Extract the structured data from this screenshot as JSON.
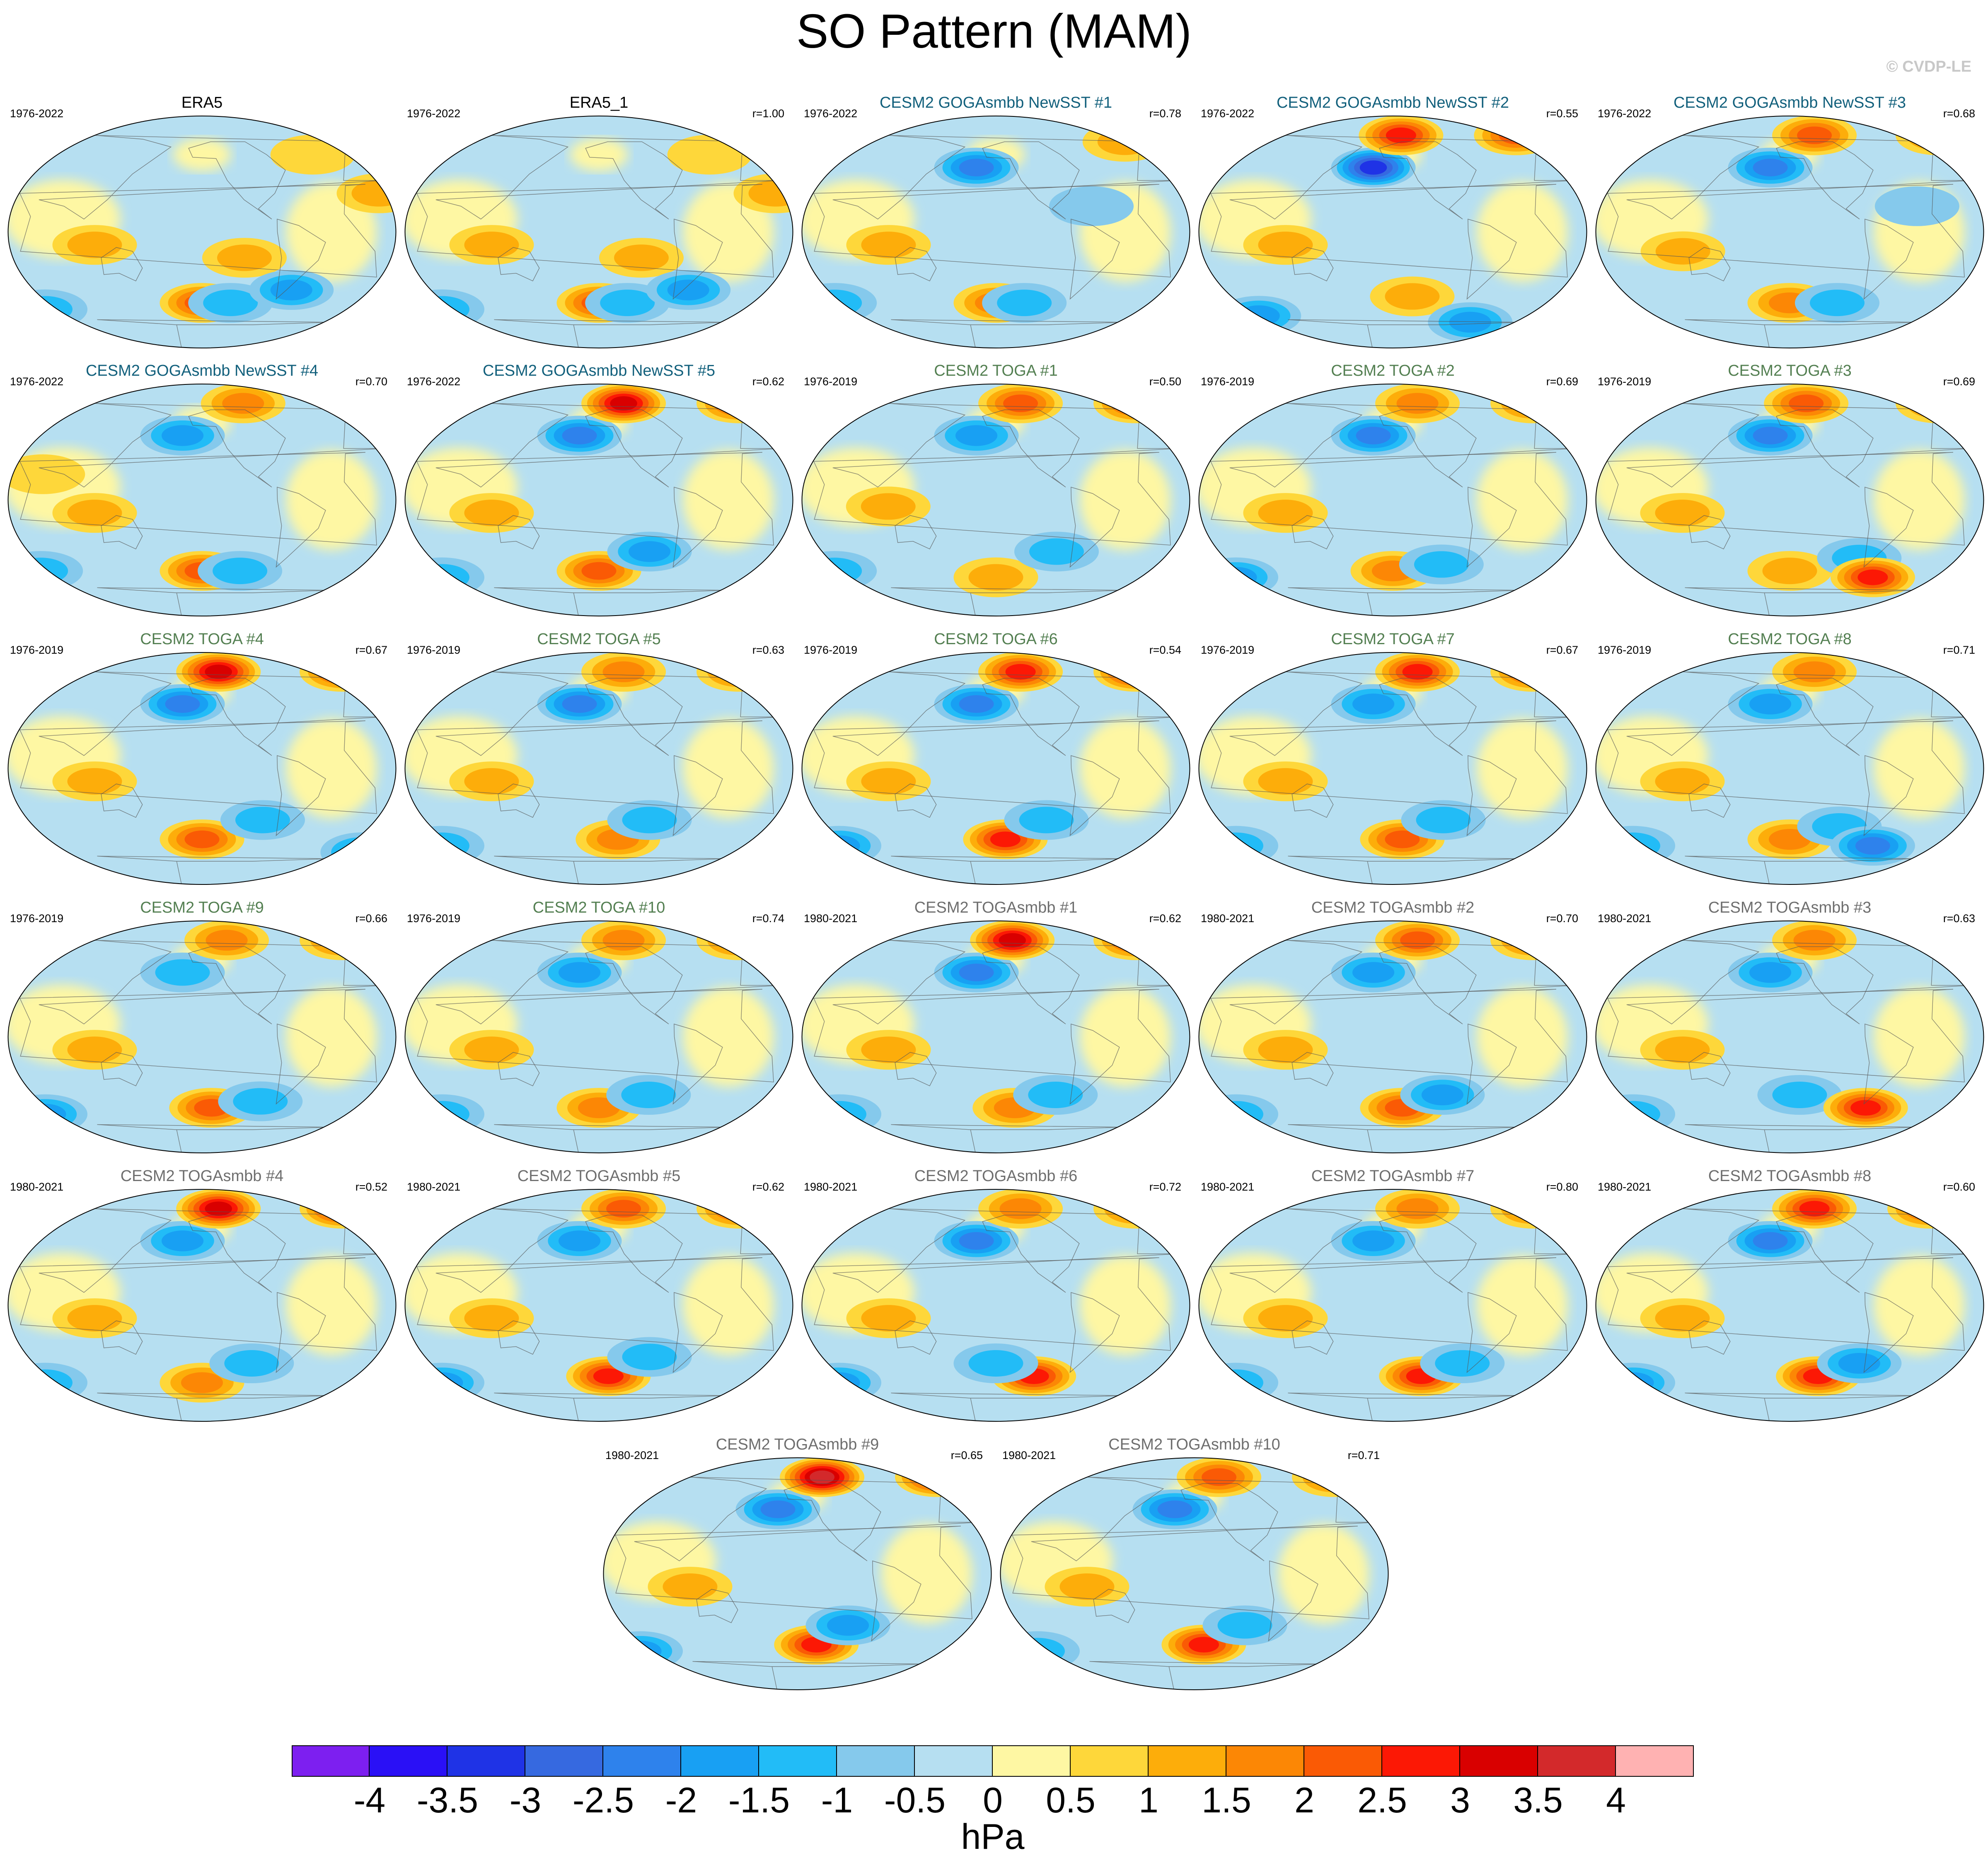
{
  "title": "SO Pattern (MAM)",
  "copyright": "© CVDP-LE",
  "colors": {
    "obs_title": "#000000",
    "goga_title": "#12607c",
    "toga_title": "#537f51",
    "togasmbb_title": "#6e6e6e",
    "ocean_neutral_neg": "#b6dff1",
    "ocean_neutral_pos": "#fef7a3"
  },
  "panels": [
    {
      "title": "ERA5",
      "years": "1976-2022",
      "r": "",
      "group": "obs",
      "anomalies": [
        [
          -110,
          -20,
          1.0
        ],
        [
          -150,
          -55,
          2.3
        ],
        [
          -120,
          -55,
          -1.2
        ],
        [
          -60,
          -45,
          -1.8
        ],
        [
          40,
          -60,
          -1.2
        ],
        [
          110,
          -10,
          1.2
        ],
        [
          20,
          30,
          1.0
        ],
        [
          -30,
          60,
          0.6
        ]
      ]
    },
    {
      "title": "ERA5_1",
      "years": "1976-2022",
      "r": "r=1.00",
      "group": "obs",
      "anomalies": [
        [
          -110,
          -20,
          1.0
        ],
        [
          -150,
          -55,
          2.3
        ],
        [
          -120,
          -55,
          -1.2
        ],
        [
          -60,
          -45,
          -1.8
        ],
        [
          40,
          -60,
          -1.2
        ],
        [
          110,
          -10,
          1.2
        ],
        [
          20,
          30,
          1.0
        ],
        [
          -30,
          60,
          0.6
        ]
      ]
    },
    {
      "title": "CESM2 GOGAsmbb NewSST #1",
      "years": "1976-2022",
      "r": "r=0.78",
      "group": "goga",
      "anomalies": [
        [
          -170,
          50,
          -2.2
        ],
        [
          -150,
          -55,
          1.8
        ],
        [
          -120,
          -55,
          -1.3
        ],
        [
          110,
          -10,
          1.2
        ],
        [
          0,
          70,
          1.2
        ],
        [
          -60,
          20,
          -0.8
        ],
        [
          40,
          -55,
          -1.0
        ]
      ]
    },
    {
      "title": "CESM2 GOGAsmbb NewSST #2",
      "years": "1976-2022",
      "r": "r=0.55",
      "group": "goga",
      "anomalies": [
        [
          -170,
          50,
          -3.0
        ],
        [
          -140,
          75,
          2.8
        ],
        [
          0,
          75,
          2.0
        ],
        [
          -130,
          -50,
          1.3
        ],
        [
          -60,
          -70,
          -1.8
        ],
        [
          60,
          -65,
          -1.5
        ],
        [
          110,
          -10,
          1.0
        ]
      ]
    },
    {
      "title": "CESM2 GOGAsmbb NewSST #3",
      "years": "1976-2022",
      "r": "r=0.68",
      "group": "goga",
      "anomalies": [
        [
          -170,
          50,
          -2.0
        ],
        [
          -120,
          75,
          2.3
        ],
        [
          30,
          75,
          1.5
        ],
        [
          -150,
          -55,
          1.5
        ],
        [
          -100,
          -55,
          -1.2
        ],
        [
          110,
          -15,
          1.2
        ],
        [
          -30,
          20,
          -0.8
        ]
      ]
    },
    {
      "title": "CESM2 GOGAsmbb NewSST #4",
      "years": "1976-2022",
      "r": "r=0.70",
      "group": "goga",
      "anomalies": [
        [
          -170,
          50,
          -1.5
        ],
        [
          -100,
          75,
          1.5
        ],
        [
          -150,
          -55,
          2.0
        ],
        [
          -110,
          -55,
          -1.0
        ],
        [
          110,
          -10,
          1.0
        ],
        [
          40,
          -55,
          -1.0
        ],
        [
          60,
          20,
          0.8
        ]
      ]
    },
    {
      "title": "CESM2 GOGAsmbb NewSST #5",
      "years": "1976-2022",
      "r": "r=0.62",
      "group": "goga",
      "anomalies": [
        [
          -170,
          50,
          -2.2
        ],
        [
          -120,
          75,
          3.2
        ],
        [
          20,
          75,
          2.0
        ],
        [
          -150,
          -55,
          2.0
        ],
        [
          -100,
          -40,
          -1.5
        ],
        [
          110,
          -10,
          1.2
        ],
        [
          40,
          -60,
          -1.2
        ]
      ]
    },
    {
      "title": "CESM2 TOGA #1",
      "years": "1976-2019",
      "r": "r=0.50",
      "group": "toga",
      "anomalies": [
        [
          -170,
          50,
          -1.5
        ],
        [
          -120,
          75,
          2.3
        ],
        [
          20,
          75,
          2.0
        ],
        [
          -150,
          -60,
          1.3
        ],
        [
          -90,
          -40,
          -1.2
        ],
        [
          110,
          -5,
          1.0
        ],
        [
          40,
          -55,
          -1.0
        ]
      ]
    },
    {
      "title": "CESM2 TOGA #2",
      "years": "1976-2019",
      "r": "r=0.69",
      "group": "toga",
      "anomalies": [
        [
          -170,
          50,
          -2.0
        ],
        [
          -120,
          75,
          1.8
        ],
        [
          20,
          75,
          1.6
        ],
        [
          -150,
          -55,
          1.5
        ],
        [
          -100,
          -50,
          -1.3
        ],
        [
          110,
          -10,
          1.0
        ],
        [
          40,
          -60,
          -1.5
        ]
      ]
    },
    {
      "title": "CESM2 TOGA #3",
      "years": "1976-2019",
      "r": "r=0.69",
      "group": "toga",
      "anomalies": [
        [
          -170,
          50,
          -2.0
        ],
        [
          -130,
          75,
          2.3
        ],
        [
          30,
          75,
          1.6
        ],
        [
          -150,
          -55,
          1.0
        ],
        [
          -80,
          -45,
          -1.4
        ],
        [
          -60,
          -60,
          2.5
        ],
        [
          110,
          -10,
          1.0
        ]
      ]
    },
    {
      "title": "CESM2 TOGA #4",
      "years": "1976-2019",
      "r": "r=0.67",
      "group": "toga",
      "anomalies": [
        [
          -170,
          50,
          -2.0
        ],
        [
          -130,
          75,
          3.2
        ],
        [
          20,
          75,
          2.0
        ],
        [
          -150,
          -55,
          2.0
        ],
        [
          -90,
          -40,
          -1.2
        ],
        [
          110,
          -10,
          1.0
        ],
        [
          30,
          -65,
          -1.5
        ]
      ]
    },
    {
      "title": "CESM2 TOGA #5",
      "years": "1976-2019",
      "r": "r=0.63",
      "group": "toga",
      "anomalies": [
        [
          -170,
          50,
          -2.0
        ],
        [
          -120,
          75,
          1.8
        ],
        [
          20,
          75,
          1.6
        ],
        [
          -130,
          -55,
          1.8
        ],
        [
          -100,
          -40,
          -1.3
        ],
        [
          110,
          -10,
          1.0
        ],
        [
          40,
          -60,
          -1.2
        ]
      ]
    },
    {
      "title": "CESM2 TOGA #6",
      "years": "1976-2019",
      "r": "r=0.54",
      "group": "toga",
      "anomalies": [
        [
          -170,
          50,
          -2.2
        ],
        [
          -120,
          75,
          2.8
        ],
        [
          20,
          75,
          2.5
        ],
        [
          -140,
          -55,
          2.6
        ],
        [
          -100,
          -40,
          -1.3
        ],
        [
          110,
          -10,
          1.0
        ],
        [
          40,
          -60,
          -1.5
        ]
      ]
    },
    {
      "title": "CESM2 TOGA #7",
      "years": "1976-2019",
      "r": "r=0.67",
      "group": "toga",
      "anomalies": [
        [
          -170,
          50,
          -1.8
        ],
        [
          -120,
          75,
          2.6
        ],
        [
          20,
          75,
          2.0
        ],
        [
          -140,
          -55,
          2.0
        ],
        [
          -100,
          -40,
          -1.3
        ],
        [
          110,
          -10,
          1.2
        ],
        [
          40,
          -60,
          -1.2
        ]
      ]
    },
    {
      "title": "CESM2 TOGA #8",
      "years": "1976-2019",
      "r": "r=0.71",
      "group": "toga",
      "anomalies": [
        [
          -170,
          50,
          -1.5
        ],
        [
          -120,
          75,
          1.6
        ],
        [
          -150,
          -55,
          1.6
        ],
        [
          -100,
          -45,
          -1.3
        ],
        [
          -60,
          -60,
          -2.0
        ],
        [
          110,
          -10,
          1.0
        ],
        [
          40,
          -60,
          -1.0
        ]
      ]
    },
    {
      "title": "CESM2 TOGA #9",
      "years": "1976-2019",
      "r": "r=0.66",
      "group": "toga",
      "anomalies": [
        [
          -170,
          50,
          -1.4
        ],
        [
          -120,
          75,
          1.8
        ],
        [
          20,
          75,
          1.5
        ],
        [
          -140,
          -55,
          2.2
        ],
        [
          -90,
          -50,
          -1.3
        ],
        [
          110,
          -10,
          1.0
        ],
        [
          40,
          -60,
          -1.5
        ]
      ]
    },
    {
      "title": "CESM2 TOGA #10",
      "years": "1976-2019",
      "r": "r=0.74",
      "group": "toga",
      "anomalies": [
        [
          -170,
          50,
          -1.6
        ],
        [
          -120,
          75,
          1.8
        ],
        [
          20,
          75,
          1.5
        ],
        [
          -150,
          -55,
          1.5
        ],
        [
          -100,
          -45,
          -1.3
        ],
        [
          110,
          -10,
          1.0
        ],
        [
          40,
          -60,
          -1.2
        ]
      ]
    },
    {
      "title": "CESM2 TOGAsmbb #1",
      "years": "1980-2021",
      "r": "r=0.62",
      "group": "togasmbb",
      "anomalies": [
        [
          -170,
          50,
          -2.2
        ],
        [
          -130,
          75,
          3.0
        ],
        [
          20,
          75,
          2.0
        ],
        [
          -130,
          -55,
          1.8
        ],
        [
          -90,
          -45,
          -1.3
        ],
        [
          110,
          -10,
          1.0
        ],
        [
          40,
          -60,
          -1.2
        ]
      ]
    },
    {
      "title": "CESM2 TOGAsmbb #2",
      "years": "1980-2021",
      "r": "r=0.70",
      "group": "togasmbb",
      "anomalies": [
        [
          -170,
          50,
          -1.8
        ],
        [
          -120,
          75,
          2.0
        ],
        [
          20,
          75,
          1.6
        ],
        [
          -140,
          -55,
          2.0
        ],
        [
          -100,
          -45,
          -1.5
        ],
        [
          110,
          -10,
          1.0
        ],
        [
          40,
          -60,
          -1.2
        ]
      ]
    },
    {
      "title": "CESM2 TOGAsmbb #3",
      "years": "1980-2021",
      "r": "r=0.63",
      "group": "togasmbb",
      "anomalies": [
        [
          -170,
          50,
          -1.6
        ],
        [
          -120,
          75,
          1.5
        ],
        [
          -140,
          -45,
          -1.4
        ],
        [
          -70,
          -55,
          2.5
        ],
        [
          110,
          -10,
          1.0
        ],
        [
          40,
          -60,
          -1.2
        ]
      ]
    },
    {
      "title": "CESM2 TOGAsmbb #4",
      "years": "1980-2021",
      "r": "r=0.52",
      "group": "togasmbb",
      "anomalies": [
        [
          -170,
          50,
          -1.5
        ],
        [
          -130,
          75,
          3.3
        ],
        [
          20,
          75,
          2.5
        ],
        [
          -150,
          -60,
          1.5
        ],
        [
          -100,
          -45,
          -1.2
        ],
        [
          110,
          -10,
          1.0
        ],
        [
          40,
          -60,
          -1.0
        ]
      ]
    },
    {
      "title": "CESM2 TOGAsmbb #5",
      "years": "1980-2021",
      "r": "r=0.62",
      "group": "togasmbb",
      "anomalies": [
        [
          -170,
          50,
          -1.6
        ],
        [
          -120,
          75,
          2.3
        ],
        [
          20,
          75,
          2.0
        ],
        [
          -140,
          -55,
          2.6
        ],
        [
          -100,
          -40,
          -1.3
        ],
        [
          110,
          -10,
          1.0
        ],
        [
          40,
          -60,
          -1.5
        ]
      ]
    },
    {
      "title": "CESM2 TOGAsmbb #6",
      "years": "1980-2021",
      "r": "r=0.72",
      "group": "togasmbb",
      "anomalies": [
        [
          -170,
          50,
          -2.2
        ],
        [
          -120,
          75,
          1.8
        ],
        [
          20,
          75,
          1.6
        ],
        [
          -110,
          -55,
          2.5
        ],
        [
          -150,
          -45,
          -1.3
        ],
        [
          110,
          -10,
          1.0
        ],
        [
          40,
          -60,
          -1.5
        ]
      ]
    },
    {
      "title": "CESM2 TOGAsmbb #7",
      "years": "1980-2021",
      "r": "r=0.80",
      "group": "togasmbb",
      "anomalies": [
        [
          -170,
          50,
          -1.6
        ],
        [
          -120,
          75,
          1.8
        ],
        [
          20,
          75,
          1.5
        ],
        [
          -120,
          -55,
          2.6
        ],
        [
          -80,
          -45,
          -1.4
        ],
        [
          110,
          -10,
          1.0
        ],
        [
          40,
          -60,
          -1.4
        ]
      ]
    },
    {
      "title": "CESM2 TOGAsmbb #8",
      "years": "1980-2021",
      "r": "r=0.60",
      "group": "togasmbb",
      "anomalies": [
        [
          -170,
          50,
          -2.2
        ],
        [
          -120,
          75,
          2.6
        ],
        [
          20,
          75,
          2.0
        ],
        [
          -120,
          -55,
          2.5
        ],
        [
          -80,
          -45,
          -1.5
        ],
        [
          110,
          -10,
          1.0
        ],
        [
          40,
          -60,
          -1.5
        ]
      ]
    },
    {
      "title": "CESM2 TOGAsmbb #9",
      "years": "1980-2021",
      "r": "r=0.65",
      "group": "togasmbb",
      "anomalies": [
        [
          -170,
          50,
          -2.2
        ],
        [
          -120,
          75,
          3.5
        ],
        [
          20,
          75,
          2.5
        ],
        [
          -130,
          -55,
          2.8
        ],
        [
          -100,
          -40,
          -1.5
        ],
        [
          110,
          -10,
          1.0
        ],
        [
          40,
          -60,
          -1.5
        ]
      ]
    },
    {
      "title": "CESM2 TOGAsmbb #10",
      "years": "1980-2021",
      "r": "r=0.71",
      "group": "togasmbb",
      "anomalies": [
        [
          -170,
          50,
          -2.2
        ],
        [
          -120,
          75,
          2.0
        ],
        [
          20,
          75,
          1.8
        ],
        [
          -140,
          -55,
          2.6
        ],
        [
          -100,
          -40,
          -1.2
        ],
        [
          110,
          -10,
          1.0
        ],
        [
          40,
          -60,
          -1.2
        ]
      ]
    }
  ],
  "colorbar": {
    "levels": [
      "-4",
      "-3.5",
      "-3",
      "-2.5",
      "-2",
      "-1.5",
      "-1",
      "-0.5",
      "0",
      "0.5",
      "1",
      "1.5",
      "2",
      "2.5",
      "3",
      "3.5",
      "4"
    ],
    "colors": [
      "#7d1ff0",
      "#2a10f6",
      "#1f33e6",
      "#3669e0",
      "#2e82ec",
      "#18a0f3",
      "#22bcf7",
      "#85c9ec",
      "#b6dff1",
      "#fef7a3",
      "#fed73a",
      "#fdad0a",
      "#fc8705",
      "#fa5a05",
      "#fc1805",
      "#d90000",
      "#d3292b",
      "#ffb2b2"
    ],
    "unit": "hPa"
  }
}
